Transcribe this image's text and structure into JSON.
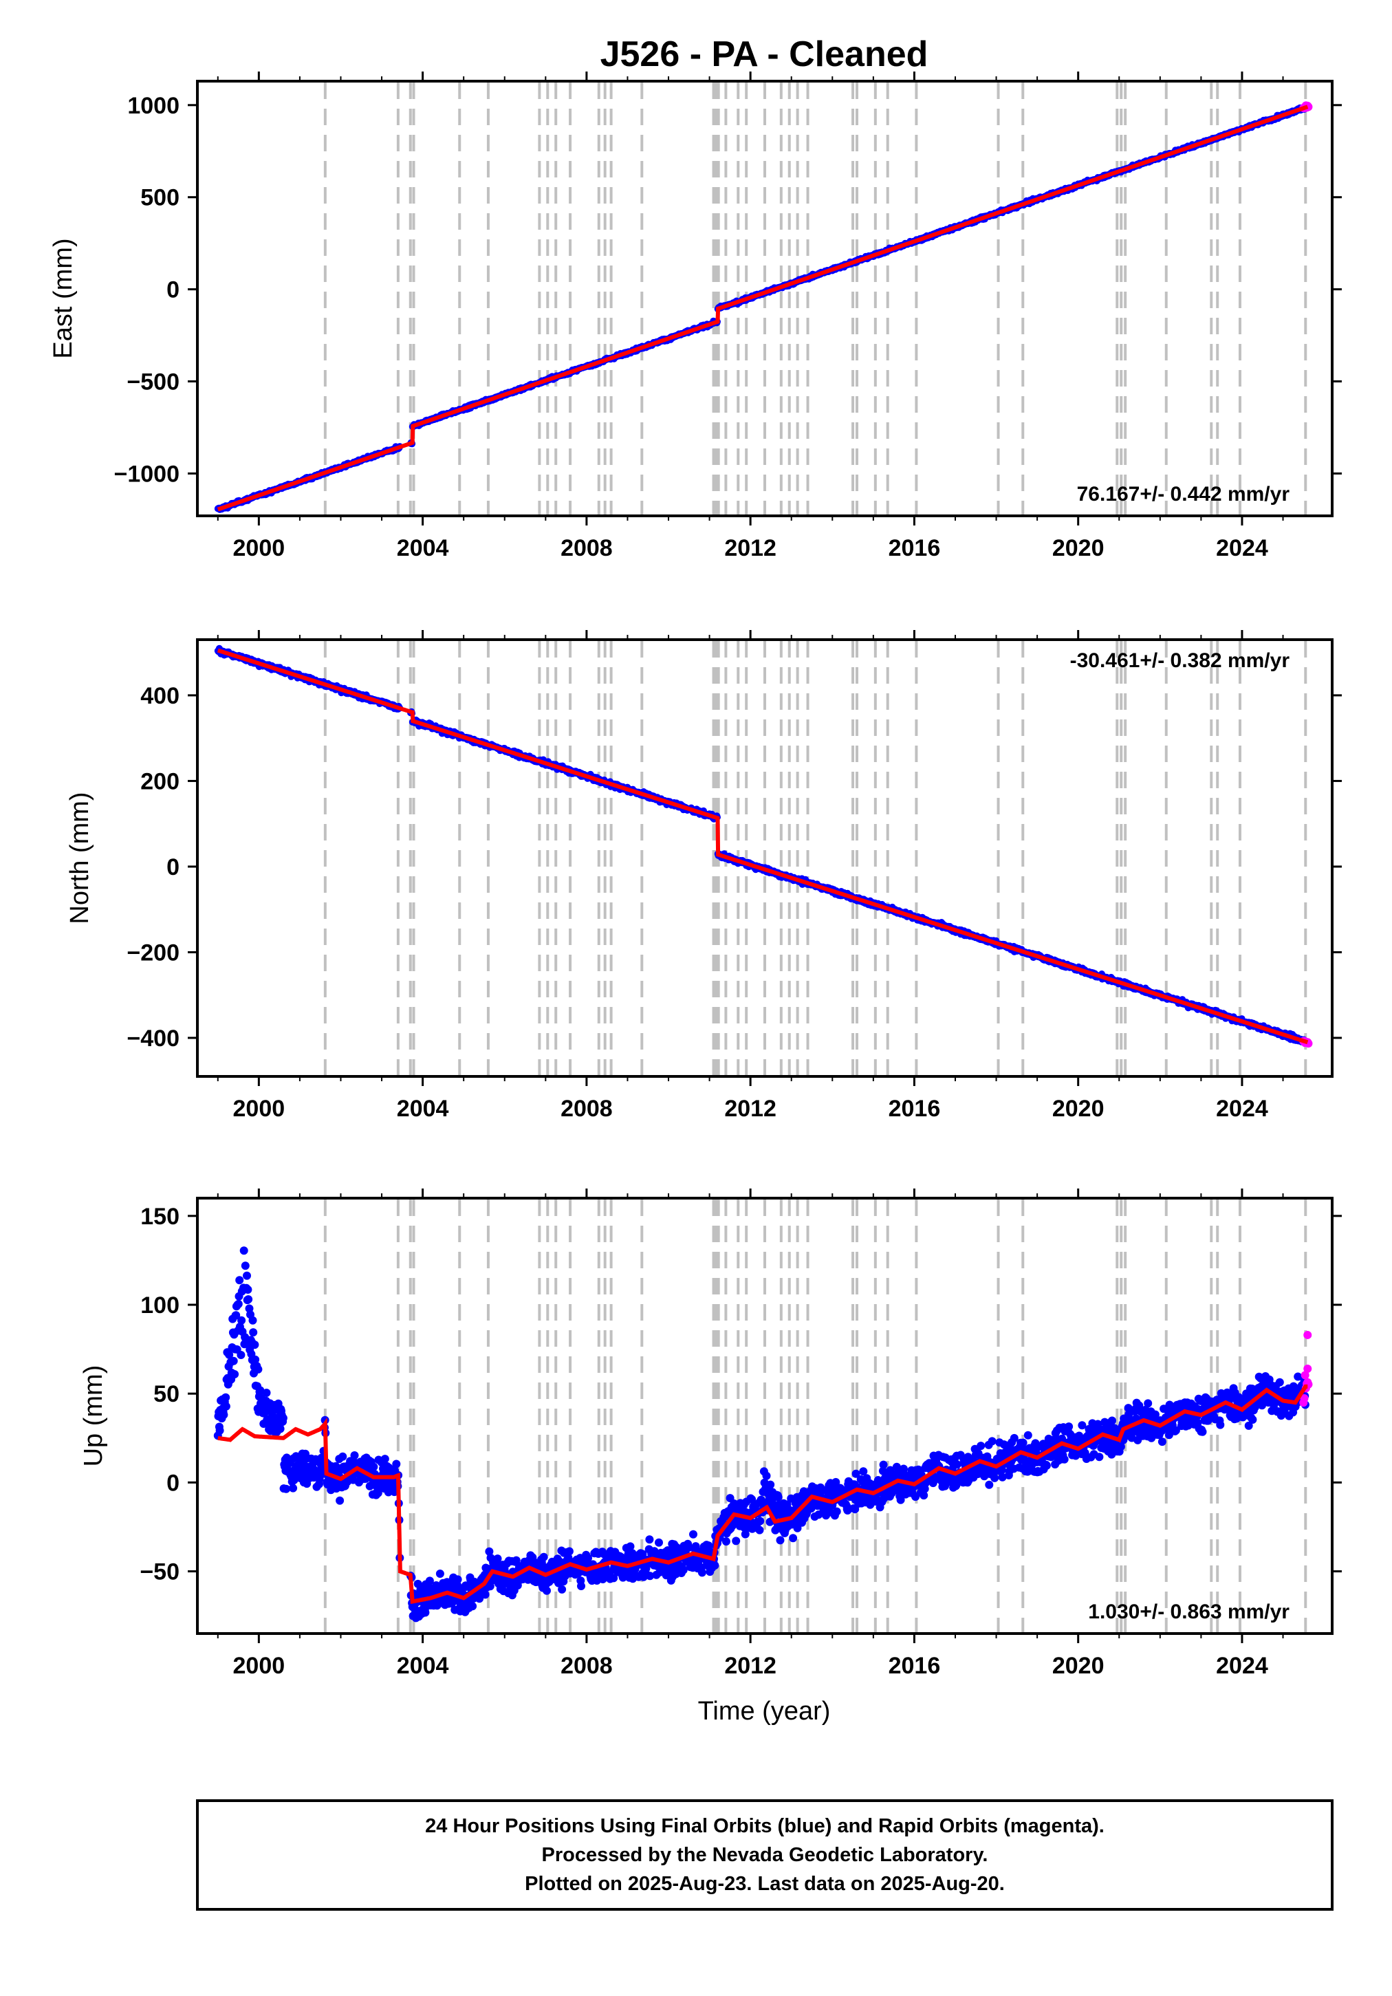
{
  "chart_data": [
    {
      "type": "scatter",
      "title": "J526  - PA - Cleaned",
      "ylabel": "East (mm)",
      "xlabel": "",
      "xlim": [
        1998.5,
        2026.2
      ],
      "ylim": [
        -1230,
        1130
      ],
      "xticks": [
        2000,
        2004,
        2008,
        2012,
        2016,
        2020,
        2024
      ],
      "xtick_labels": [
        "2000",
        "2004",
        "2008",
        "2012",
        "2016",
        "2020",
        "2024"
      ],
      "yticks": [
        -1000,
        -500,
        0,
        500,
        1000
      ],
      "ytick_labels": [
        "−1000",
        "−500",
        "0",
        "500",
        "1000"
      ],
      "rate_label": "76.167+/- 0.442 mm/yr",
      "rate_position": "bottom-right",
      "grid": false,
      "series": [
        {
          "name": "Final Orbits",
          "color": "#0000ff",
          "mode": "points"
        },
        {
          "name": "Rapid Orbits",
          "color": "#ff00ff",
          "mode": "points"
        },
        {
          "name": "Model fit",
          "color": "#ff0000",
          "mode": "line"
        }
      ],
      "model": {
        "start": 1999.0,
        "start_value": -1195,
        "rate": 76.167,
        "offsets": [
          [
            2003.75,
            90
          ],
          [
            2011.2,
            70
          ]
        ]
      }
    },
    {
      "type": "scatter",
      "title": "",
      "ylabel": "North (mm)",
      "xlabel": "",
      "xlim": [
        1998.5,
        2026.2
      ],
      "ylim": [
        -490,
        530
      ],
      "xticks": [
        2000,
        2004,
        2008,
        2012,
        2016,
        2020,
        2024
      ],
      "xtick_labels": [
        "2000",
        "2004",
        "2008",
        "2012",
        "2016",
        "2020",
        "2024"
      ],
      "yticks": [
        -400,
        -200,
        0,
        200,
        400
      ],
      "ytick_labels": [
        "−400",
        "−200",
        "0",
        "200",
        "400"
      ],
      "rate_label": "-30.461+/- 0.382 mm/yr",
      "rate_position": "top-right",
      "grid": false,
      "series": [
        {
          "name": "Final Orbits",
          "color": "#0000ff",
          "mode": "points"
        },
        {
          "name": "Rapid Orbits",
          "color": "#ff00ff",
          "mode": "points"
        },
        {
          "name": "Model fit",
          "color": "#ff0000",
          "mode": "line"
        }
      ],
      "model": {
        "start": 1999.0,
        "start_value": 505,
        "rate": -30.461,
        "offsets": [
          [
            2003.75,
            -20
          ],
          [
            2011.2,
            -85
          ]
        ]
      }
    },
    {
      "type": "scatter",
      "title": "",
      "ylabel": "Up (mm)",
      "xlabel": "Time (year)",
      "xlim": [
        1998.5,
        2026.2
      ],
      "ylim": [
        -85,
        160
      ],
      "xticks": [
        2000,
        2004,
        2008,
        2012,
        2016,
        2020,
        2024
      ],
      "xtick_labels": [
        "2000",
        "2004",
        "2008",
        "2012",
        "2016",
        "2020",
        "2024"
      ],
      "yticks": [
        -50,
        0,
        50,
        100,
        150
      ],
      "ytick_labels": [
        "−50",
        "0",
        "50",
        "100",
        "150"
      ],
      "rate_label": "1.030+/- 0.863 mm/yr",
      "rate_position": "bottom-right",
      "grid": false,
      "series": [
        {
          "name": "Final Orbits",
          "color": "#0000ff",
          "mode": "points"
        },
        {
          "name": "Rapid Orbits",
          "color": "#ff00ff",
          "mode": "points"
        },
        {
          "name": "Model fit",
          "color": "#ff0000",
          "mode": "line"
        }
      ],
      "up_model": [
        [
          1999.0,
          25
        ],
        [
          1999.3,
          24
        ],
        [
          1999.6,
          30
        ],
        [
          1999.9,
          26
        ],
        [
          2000.6,
          25
        ],
        [
          2000.9,
          30
        ],
        [
          2001.2,
          27
        ],
        [
          2001.5,
          30
        ],
        [
          2001.62,
          33
        ],
        [
          2001.65,
          5
        ],
        [
          2002.0,
          2
        ],
        [
          2002.4,
          8
        ],
        [
          2002.8,
          3
        ],
        [
          2003.3,
          3
        ],
        [
          2003.4,
          4
        ],
        [
          2003.45,
          -50
        ],
        [
          2003.7,
          -52
        ],
        [
          2003.75,
          -67
        ],
        [
          2004.2,
          -65
        ],
        [
          2004.6,
          -62
        ],
        [
          2005.0,
          -65
        ],
        [
          2005.5,
          -57
        ],
        [
          2005.7,
          -50
        ],
        [
          2006.2,
          -53
        ],
        [
          2006.6,
          -48
        ],
        [
          2007.0,
          -52
        ],
        [
          2007.6,
          -46
        ],
        [
          2008.0,
          -49
        ],
        [
          2008.6,
          -45
        ],
        [
          2009.0,
          -47
        ],
        [
          2009.6,
          -43
        ],
        [
          2010.0,
          -45
        ],
        [
          2010.6,
          -40
        ],
        [
          2011.1,
          -43
        ],
        [
          2011.2,
          -30
        ],
        [
          2011.6,
          -18
        ],
        [
          2012.0,
          -20
        ],
        [
          2012.4,
          -14
        ],
        [
          2012.6,
          -22
        ],
        [
          2013.0,
          -20
        ],
        [
          2013.5,
          -8
        ],
        [
          2014.0,
          -11
        ],
        [
          2014.6,
          -4
        ],
        [
          2015.0,
          -6
        ],
        [
          2015.6,
          1
        ],
        [
          2016.0,
          -1
        ],
        [
          2016.6,
          8
        ],
        [
          2017.0,
          5
        ],
        [
          2017.6,
          12
        ],
        [
          2018.0,
          9
        ],
        [
          2018.6,
          17
        ],
        [
          2019.0,
          14
        ],
        [
          2019.6,
          22
        ],
        [
          2020.0,
          19
        ],
        [
          2020.6,
          27
        ],
        [
          2021.0,
          24
        ],
        [
          2021.1,
          30
        ],
        [
          2021.6,
          35
        ],
        [
          2022.0,
          32
        ],
        [
          2022.6,
          40
        ],
        [
          2023.0,
          38
        ],
        [
          2023.6,
          45
        ],
        [
          2024.0,
          41
        ],
        [
          2024.6,
          52
        ],
        [
          2025.0,
          46
        ],
        [
          2025.3,
          45
        ],
        [
          2025.55,
          54
        ]
      ]
    }
  ],
  "event_lines": [
    2001.62,
    2003.4,
    2003.7,
    2003.78,
    2004.9,
    2005.6,
    2006.85,
    2007.05,
    2007.25,
    2007.6,
    2008.3,
    2008.45,
    2008.6,
    2009.35,
    2011.1,
    2011.16,
    2011.22,
    2011.4,
    2011.7,
    2011.9,
    2012.35,
    2012.75,
    2012.95,
    2013.15,
    2013.4,
    2014.5,
    2014.6,
    2015.05,
    2015.35,
    2016.05,
    2018.05,
    2018.65,
    2020.95,
    2021.05,
    2021.15,
    2022.15,
    2023.25,
    2023.4,
    2023.95,
    2025.55
  ],
  "caption": {
    "line1": "24 Hour Positions Using Final Orbits (blue) and Rapid Orbits (magenta).",
    "line2": "Processed by the Nevada Geodetic Laboratory.",
    "line3": "Plotted on 2025-Aug-23. Last data on 2025-Aug-20."
  },
  "colors": {
    "final_orbits": "#0000ff",
    "rapid_orbits": "#ff00ff",
    "model": "#ff0000",
    "event_line": "#c0c0c0",
    "frame": "#000000"
  }
}
